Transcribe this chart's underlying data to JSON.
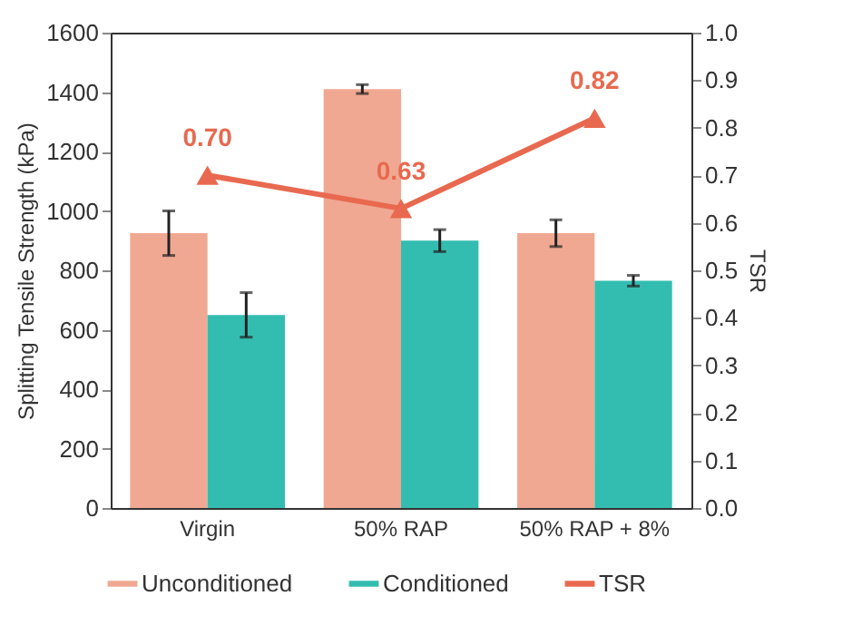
{
  "chart_data": {
    "type": "bar",
    "categories": [
      "Virgin",
      "50% RAP",
      "50% RAP + 8%"
    ],
    "ylabel": "Splitting Tensile Strength (kPa)",
    "y2label": "TSR",
    "ylim": [
      0,
      1600
    ],
    "yticks": [
      0,
      200,
      400,
      600,
      800,
      1000,
      1200,
      1400,
      1600
    ],
    "y2lim": [
      0,
      1.0
    ],
    "y2ticks": [
      {
        "value": 0,
        "label": "0.0"
      },
      0.1,
      0.2,
      0.3,
      0.4,
      0.5,
      0.6,
      0.7,
      0.8,
      0.9,
      {
        "value": 1,
        "label": "1.0"
      }
    ],
    "series": [
      {
        "name": "Unconditioned",
        "color": "#f0a892",
        "values": [
          925,
          1410,
          925
        ],
        "errors": [
          75,
          15,
          45
        ]
      },
      {
        "name": "Conditioned",
        "color": "#33bdb0",
        "values": [
          650,
          900,
          765
        ],
        "errors": [
          75,
          37,
          18
        ]
      },
      {
        "name": "TSR",
        "type": "line",
        "axis": "y2",
        "color": "#e8694f",
        "marker": "triangle",
        "values": [
          0.7,
          0.63,
          0.82
        ],
        "value_labels": [
          "0.70",
          "0.63",
          "0.82"
        ]
      }
    ],
    "legend": "bottom",
    "grid": false
  }
}
